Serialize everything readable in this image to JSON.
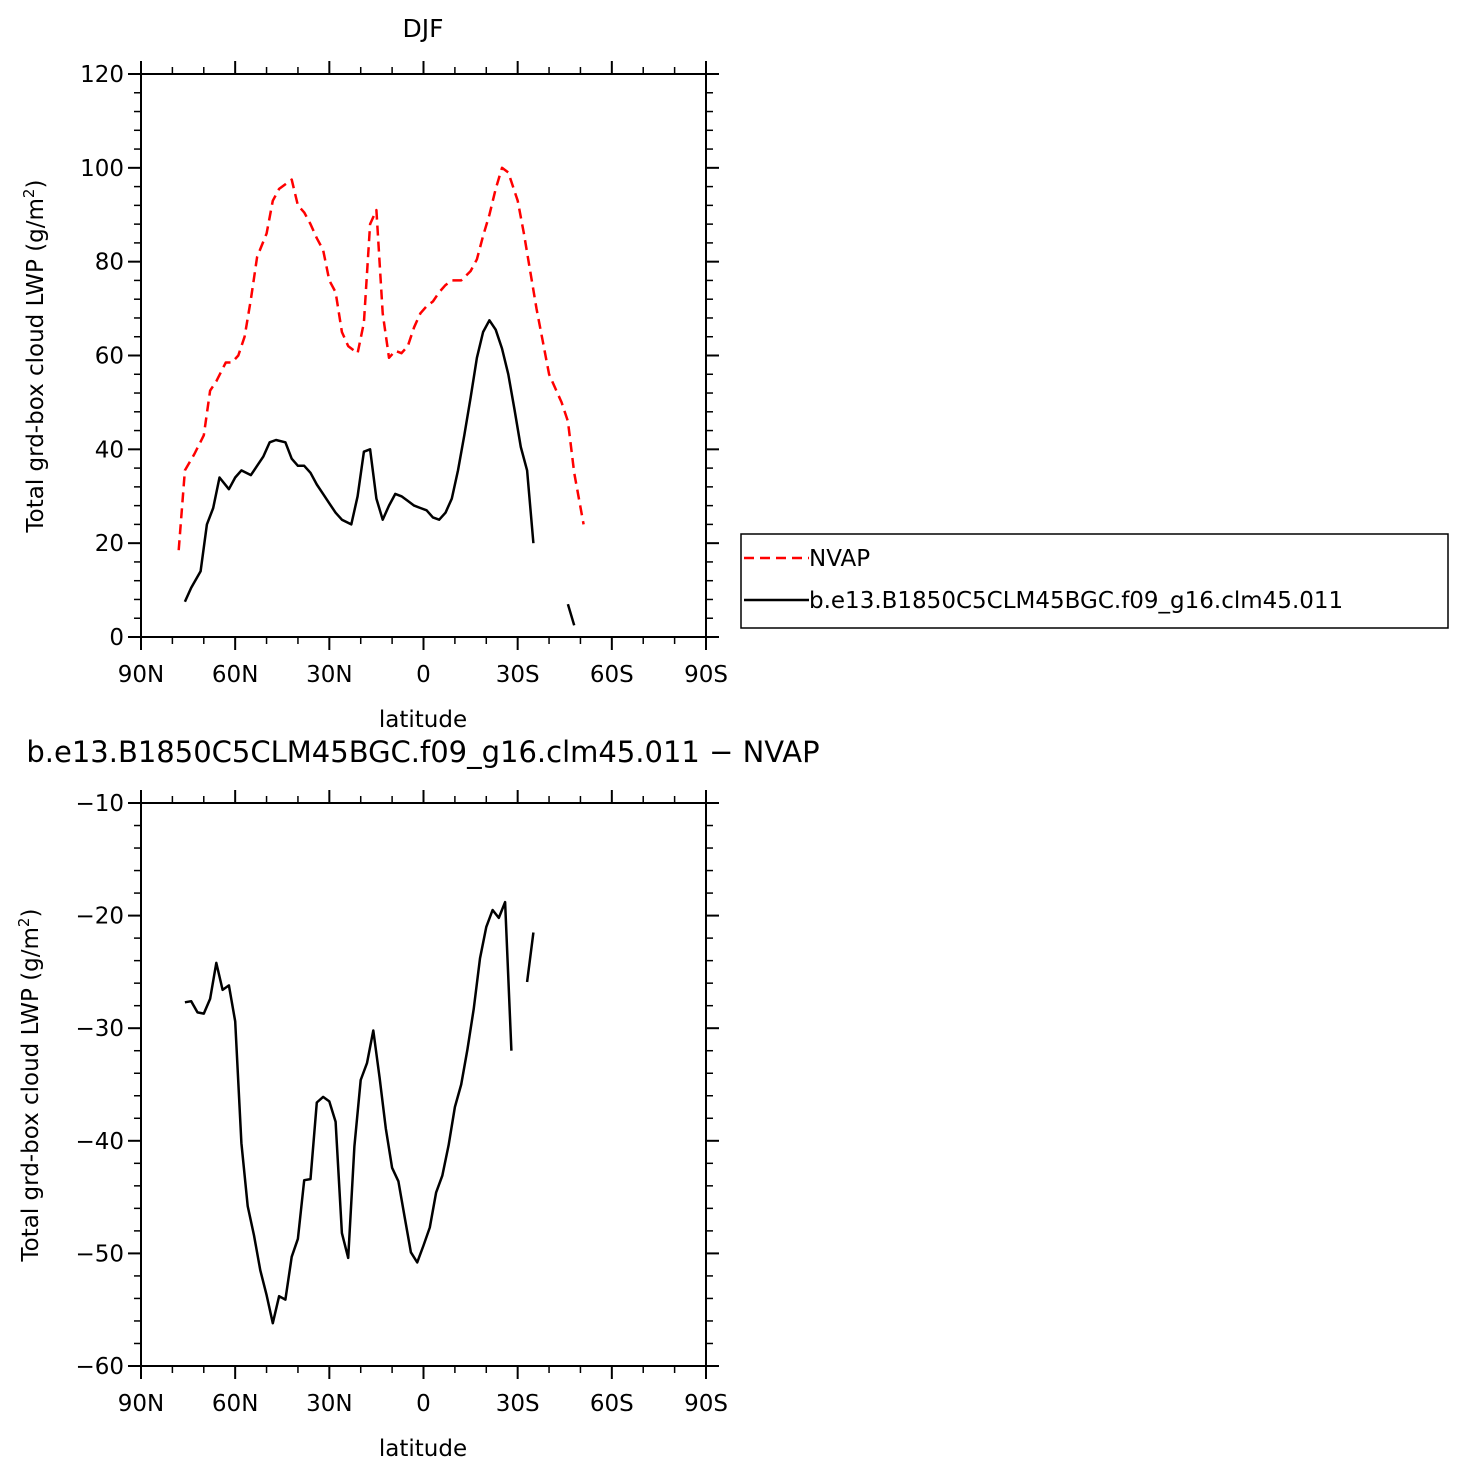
{
  "chart_data": [
    {
      "type": "line",
      "title": "DJF",
      "xlabel": "latitude",
      "ylabel": "Total grd-box cloud LWP (g/m",
      "ylabel_sup": "2",
      "ylabel_tail": ")",
      "xlim": [
        90,
        -90
      ],
      "ylim": [
        0,
        120
      ],
      "x_ticks": [
        90,
        60,
        30,
        0,
        -30,
        -60,
        -90
      ],
      "x_tick_labels": [
        "90N",
        "60N",
        "30N",
        "0",
        "30S",
        "60S",
        "90S"
      ],
      "y_ticks": [
        0,
        20,
        40,
        60,
        80,
        100,
        120
      ],
      "y_tick_labels": [
        "0",
        "20",
        "40",
        "60",
        "80",
        "100",
        "120"
      ],
      "legend_position": "right",
      "series": [
        {
          "name": "NVAP",
          "color": "#ff0000",
          "dash": "dashed",
          "points": [
            [
              78,
              18.5
            ],
            [
              76,
              35.5
            ],
            [
              73,
              39
            ],
            [
              70,
              43
            ],
            [
              68,
              52.5
            ],
            [
              66,
              54.5
            ],
            [
              63,
              58.5
            ],
            [
              61,
              58.5
            ],
            [
              59,
              60
            ],
            [
              57,
              64
            ],
            [
              55,
              72
            ],
            [
              53,
              81
            ],
            [
              50,
              86
            ],
            [
              48,
              93
            ],
            [
              46,
              95.5
            ],
            [
              42,
              97.5
            ],
            [
              40,
              92
            ],
            [
              38,
              90.5
            ],
            [
              36,
              88
            ],
            [
              34,
              85
            ],
            [
              32,
              82.5
            ],
            [
              30,
              76
            ],
            [
              28,
              73.5
            ],
            [
              26,
              65
            ],
            [
              24,
              62
            ],
            [
              21,
              60.5
            ],
            [
              19,
              67
            ],
            [
              17,
              88
            ],
            [
              15,
              91
            ],
            [
              13,
              69
            ],
            [
              11,
              59.5
            ],
            [
              9,
              61
            ],
            [
              7,
              60.5
            ],
            [
              5,
              62
            ],
            [
              3,
              66
            ],
            [
              1,
              69
            ],
            [
              -1,
              70.5
            ],
            [
              -3,
              71.5
            ],
            [
              -5,
              73.5
            ],
            [
              -7,
              75
            ],
            [
              -9,
              76
            ],
            [
              -12,
              76
            ],
            [
              -15,
              78
            ],
            [
              -17,
              80.5
            ],
            [
              -19,
              85.5
            ],
            [
              -21,
              90
            ],
            [
              -23,
              95.5
            ],
            [
              -25,
              100
            ],
            [
              -27,
              99
            ],
            [
              -30,
              93
            ],
            [
              -32,
              86
            ],
            [
              -34,
              78
            ],
            [
              -36,
              70
            ],
            [
              -38,
              63
            ],
            [
              -40,
              56
            ],
            [
              -42,
              53
            ],
            [
              -44,
              50
            ],
            [
              -46,
              46
            ],
            [
              -48,
              35
            ],
            [
              -51,
              24
            ]
          ]
        },
        {
          "name": "b.e13.B1850C5CLM45BGC.f09_g16.clm45.011",
          "color": "#000000",
          "dash": "solid",
          "points": [
            [
              76,
              7.5
            ],
            [
              74,
              10.5
            ],
            [
              71,
              14
            ],
            [
              69,
              24
            ],
            [
              67,
              27.5
            ],
            [
              65,
              34
            ],
            [
              62,
              31.5
            ],
            [
              60,
              34
            ],
            [
              58,
              35.5
            ],
            [
              55,
              34.5
            ],
            [
              53,
              36.5
            ],
            [
              51,
              38.5
            ],
            [
              49,
              41.5
            ],
            [
              47,
              42
            ],
            [
              44,
              41.5
            ],
            [
              42,
              38
            ],
            [
              40,
              36.5
            ],
            [
              38,
              36.5
            ],
            [
              36,
              35
            ],
            [
              34,
              32.5
            ],
            [
              32,
              30.5
            ],
            [
              30,
              28.5
            ],
            [
              28,
              26.5
            ],
            [
              26,
              25
            ],
            [
              23,
              24
            ],
            [
              21,
              30
            ],
            [
              19,
              39.5
            ],
            [
              17,
              40
            ],
            [
              15,
              29.5
            ],
            [
              13,
              25
            ],
            [
              11,
              28
            ],
            [
              9,
              30.5
            ],
            [
              7,
              30
            ],
            [
              5,
              29
            ],
            [
              3,
              28
            ],
            [
              1,
              27.5
            ],
            [
              -1,
              27
            ],
            [
              -3,
              25.5
            ],
            [
              -5,
              25
            ],
            [
              -7,
              26.5
            ],
            [
              -9,
              29.5
            ],
            [
              -11,
              35.5
            ],
            [
              -13,
              43
            ],
            [
              -15,
              51
            ],
            [
              -17,
              59.5
            ],
            [
              -19,
              65
            ],
            [
              -21,
              67.5
            ],
            [
              -23,
              65.5
            ],
            [
              -25,
              61.5
            ],
            [
              -27,
              56
            ],
            [
              -29,
              48.5
            ],
            [
              -31,
              40.5
            ],
            [
              -33,
              35.5
            ],
            [
              -35,
              20
            ],
            null,
            [
              -46,
              7
            ],
            [
              -48,
              2.5
            ]
          ]
        }
      ]
    },
    {
      "type": "line",
      "title": "b.e13.B1850C5CLM45BGC.f09_g16.clm45.011 − NVAP",
      "xlabel": "latitude",
      "ylabel": "Total grd-box cloud LWP (g/m",
      "ylabel_sup": "2",
      "ylabel_tail": ")",
      "xlim": [
        90,
        -90
      ],
      "ylim": [
        -60,
        -10
      ],
      "x_ticks": [
        90,
        60,
        30,
        0,
        -30,
        -60,
        -90
      ],
      "x_tick_labels": [
        "90N",
        "60N",
        "30N",
        "0",
        "30S",
        "60S",
        "90S"
      ],
      "y_ticks": [
        -60,
        -50,
        -40,
        -30,
        -20,
        -10
      ],
      "y_tick_labels": [
        "−60",
        "−50",
        "−40",
        "−30",
        "−20",
        "−10"
      ],
      "series": [
        {
          "color": "#000000",
          "dash": "solid",
          "points": [
            [
              76,
              -27.7
            ],
            [
              74,
              -27.6
            ],
            [
              72,
              -28.6
            ],
            [
              70,
              -28.7
            ],
            [
              68,
              -27.4
            ],
            [
              66,
              -24.2
            ],
            [
              64,
              -26.6
            ],
            [
              62,
              -26.2
            ],
            [
              60,
              -29.4
            ],
            [
              58,
              -40.2
            ],
            [
              56,
              -45.8
            ],
            [
              54,
              -48.4
            ],
            [
              52,
              -51.5
            ],
            [
              50,
              -53.7
            ],
            [
              48,
              -56.2
            ],
            [
              46,
              -53.8
            ],
            [
              44,
              -54.1
            ],
            [
              42,
              -50.3
            ],
            [
              40,
              -48.7
            ],
            [
              38,
              -43.5
            ],
            [
              36,
              -43.4
            ],
            [
              34,
              -36.6
            ],
            [
              32,
              -36.1
            ],
            [
              30,
              -36.5
            ],
            [
              28,
              -38.3
            ],
            [
              26,
              -48.2
            ],
            [
              24,
              -50.4
            ],
            [
              22,
              -40.5
            ],
            [
              20,
              -34.6
            ],
            [
              18,
              -33.1
            ],
            [
              16,
              -30.2
            ],
            [
              14,
              -34.4
            ],
            [
              12,
              -38.9
            ],
            [
              10,
              -42.4
            ],
            [
              8,
              -43.6
            ],
            [
              6,
              -46.8
            ],
            [
              4,
              -49.9
            ],
            [
              2,
              -50.8
            ],
            [
              0,
              -49.3
            ],
            [
              -2,
              -47.7
            ],
            [
              -4,
              -44.6
            ],
            [
              -6,
              -43.1
            ],
            [
              -8,
              -40.4
            ],
            [
              -10,
              -37
            ],
            [
              -12,
              -35
            ],
            [
              -14,
              -31.9
            ],
            [
              -16,
              -28.3
            ],
            [
              -18,
              -23.8
            ],
            [
              -20,
              -21
            ],
            [
              -22,
              -19.5
            ],
            [
              -24,
              -20.2
            ],
            [
              -26,
              -18.8
            ],
            [
              -28,
              -32
            ],
            null,
            [
              -33,
              -25.9
            ],
            [
              -35,
              -21.5
            ]
          ]
        }
      ]
    }
  ]
}
